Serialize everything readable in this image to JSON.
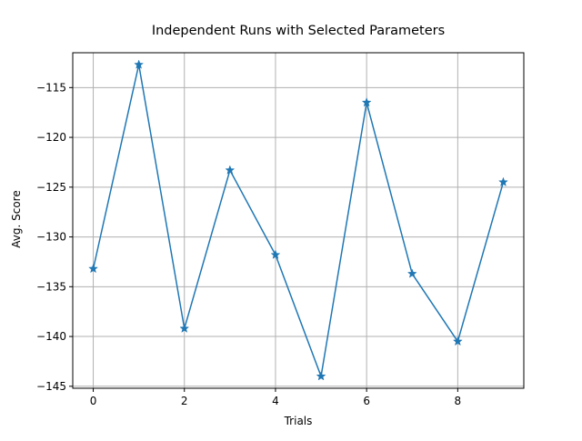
{
  "chart_data": {
    "type": "line",
    "title": "Independent Runs with Selected Parameters",
    "xlabel": "Trials",
    "ylabel": "Avg. Score",
    "xlim": [
      -0.45,
      9.45
    ],
    "ylim": [
      -145.2,
      -111.5
    ],
    "xticks": [
      0,
      2,
      4,
      6,
      8
    ],
    "yticks": [
      -115,
      -120,
      -125,
      -130,
      -135,
      -140,
      -145
    ],
    "grid": true,
    "series": [
      {
        "marker": "star",
        "color": "#1f77b4",
        "x": [
          0,
          1,
          2,
          3,
          4,
          5,
          6,
          7,
          8,
          9
        ],
        "y": [
          -133.2,
          -112.7,
          -139.2,
          -123.3,
          -131.8,
          -144.0,
          -116.5,
          -133.7,
          -140.5,
          -124.5
        ]
      }
    ]
  }
}
